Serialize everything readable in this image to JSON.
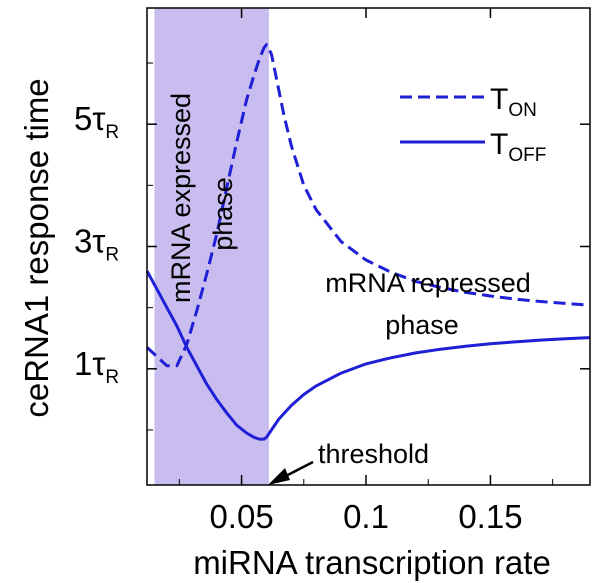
{
  "chart_data": {
    "type": "line",
    "title": "",
    "xlabel": "miRNA transcription rate",
    "ylabel": "ceRNA1 response time",
    "xlim": [
      0.012,
      0.19
    ],
    "ylim": [
      -0.9,
      6.9
    ],
    "x_ticks": [
      {
        "value": 0.05,
        "label": "0.05"
      },
      {
        "value": 0.1,
        "label": "0.1"
      },
      {
        "value": 0.15,
        "label": "0.15"
      }
    ],
    "y_ticks": [
      {
        "value": 1,
        "main": "1τ",
        "sub": "R"
      },
      {
        "value": 3,
        "main": "3τ",
        "sub": "R"
      },
      {
        "value": 5,
        "main": "5τ",
        "sub": "R"
      }
    ],
    "y_minor_ticks": [
      0,
      2,
      4,
      6
    ],
    "x_minor_ticks": [
      0.025,
      0.075,
      0.125,
      0.175
    ],
    "shaded_region": {
      "x": [
        0.015,
        0.061
      ],
      "color": "#c9bdf0"
    },
    "series": [
      {
        "name": "T_ON",
        "style": "dashed",
        "color": "#1f1fd6",
        "x": [
          0.012,
          0.016,
          0.02,
          0.024,
          0.028,
          0.032,
          0.036,
          0.04,
          0.044,
          0.048,
          0.052,
          0.055,
          0.057,
          0.059,
          0.06,
          0.062,
          0.064,
          0.067,
          0.07,
          0.075,
          0.08,
          0.09,
          0.1,
          0.11,
          0.12,
          0.13,
          0.14,
          0.15,
          0.16,
          0.17,
          0.18,
          0.19
        ],
        "y": [
          1.35,
          1.2,
          1.05,
          1.05,
          1.4,
          1.95,
          2.55,
          3.2,
          3.95,
          4.7,
          5.4,
          5.8,
          6.05,
          6.25,
          6.3,
          6.15,
          5.75,
          5.15,
          4.65,
          4.0,
          3.6,
          3.08,
          2.78,
          2.58,
          2.43,
          2.33,
          2.25,
          2.19,
          2.14,
          2.1,
          2.07,
          2.04
        ]
      },
      {
        "name": "T_OFF",
        "style": "solid",
        "color": "#1f1fd6",
        "x": [
          0.012,
          0.016,
          0.02,
          0.024,
          0.028,
          0.032,
          0.036,
          0.04,
          0.044,
          0.048,
          0.052,
          0.055,
          0.057,
          0.059,
          0.06,
          0.062,
          0.065,
          0.07,
          0.075,
          0.08,
          0.09,
          0.1,
          0.11,
          0.12,
          0.13,
          0.14,
          0.15,
          0.16,
          0.17,
          0.18,
          0.19
        ],
        "y": [
          2.6,
          2.3,
          2.0,
          1.7,
          1.35,
          1.05,
          0.75,
          0.5,
          0.28,
          0.08,
          -0.05,
          -0.12,
          -0.15,
          -0.15,
          -0.12,
          0.0,
          0.18,
          0.4,
          0.58,
          0.72,
          0.93,
          1.08,
          1.18,
          1.26,
          1.32,
          1.37,
          1.41,
          1.44,
          1.47,
          1.49,
          1.51
        ]
      }
    ],
    "legend": {
      "placement": "top-right",
      "items": [
        {
          "style": "dashed",
          "main": "T",
          "sub": "ON"
        },
        {
          "style": "solid",
          "main": "T",
          "sub": "OFF"
        }
      ]
    },
    "annotations": {
      "expressed_line1": "mRNA expressed",
      "expressed_line2": "phase",
      "repressed_line1": "mRNA repressed",
      "repressed_line2": "phase",
      "threshold": "threshold"
    }
  }
}
